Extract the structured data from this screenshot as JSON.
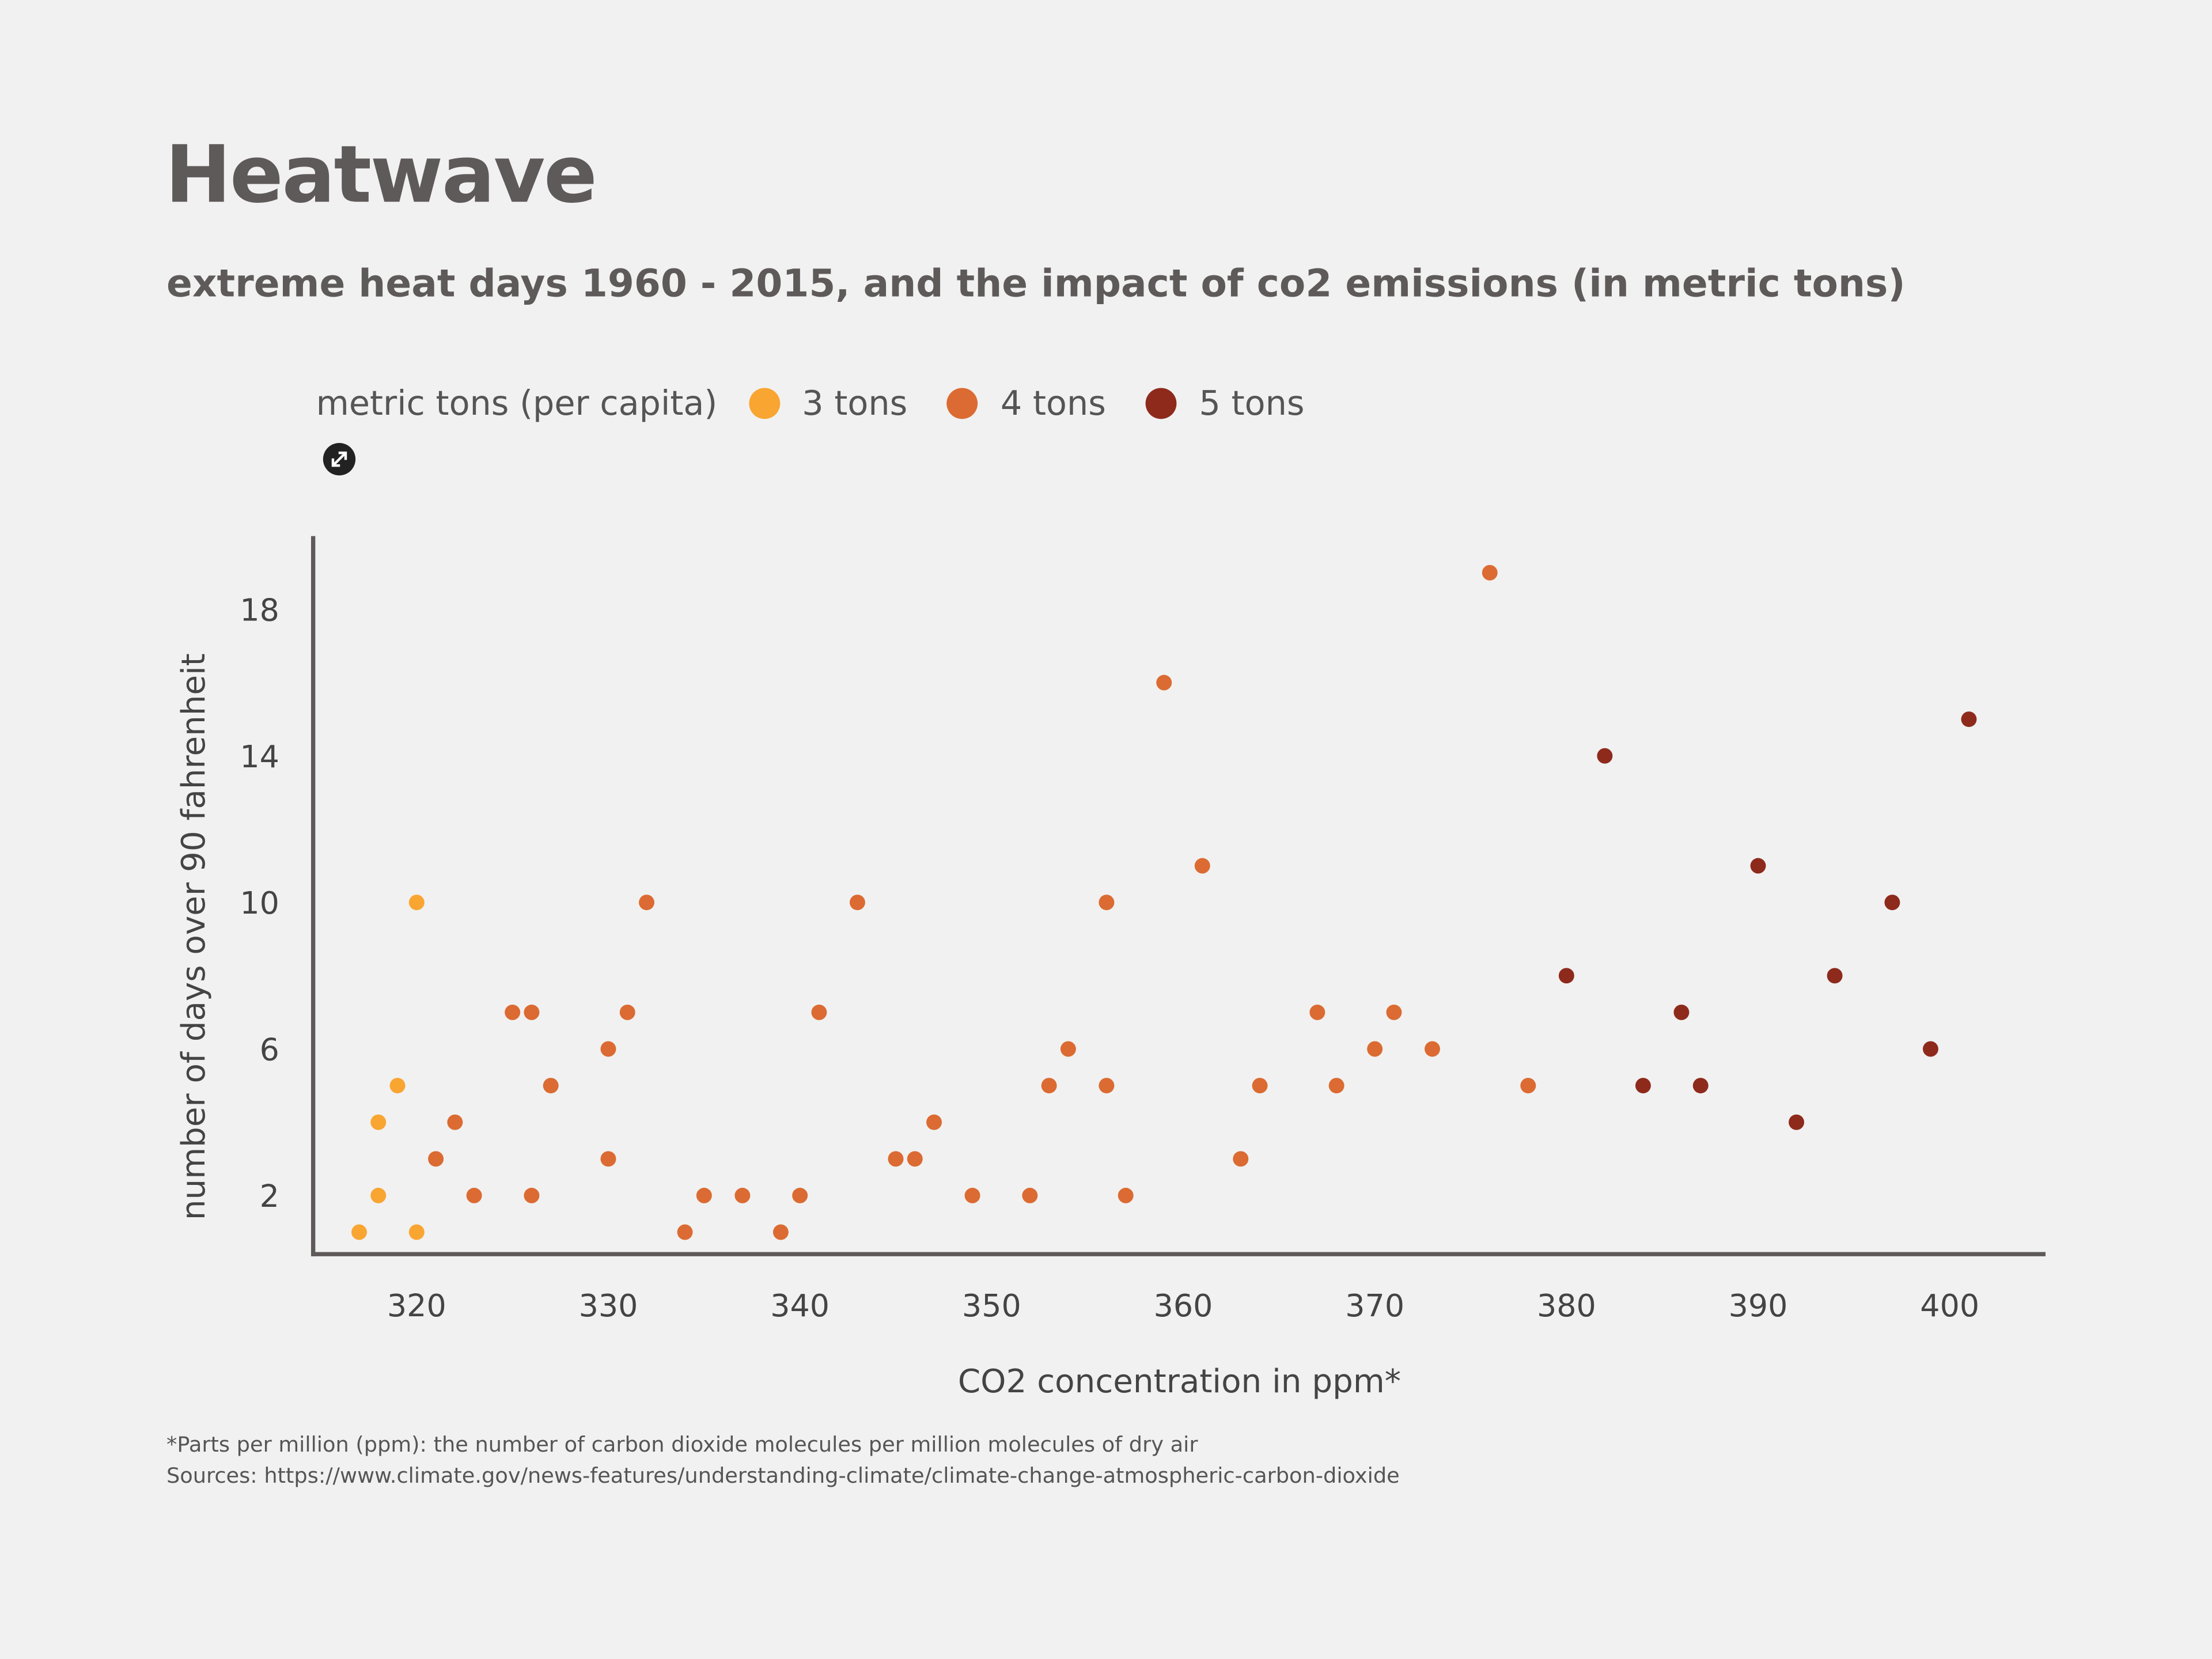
{
  "title": "Heatwave",
  "subtitle": "extreme heat days 1960 - 2015, and the impact of co2 emissions (in metric tons)",
  "legend": {
    "title": "metric tons (per capita)",
    "items": [
      {
        "label": "3 tons",
        "color": "#F9A532"
      },
      {
        "label": "4 tons",
        "color": "#DB6B32"
      },
      {
        "label": "5 tons",
        "color": "#8E2A1C"
      }
    ]
  },
  "expand_icon": "expand-arrows-icon",
  "footnotes": {
    "note": "*Parts per million (ppm): the number of carbon dioxide molecules per million molecules of dry air",
    "sources": "Sources: https://www.climate.gov/news-features/understanding-climate/climate-change-atmospheric-carbon-dioxide"
  },
  "chart_data": {
    "type": "scatter",
    "xlabel": "CO2 concentration in ppm*",
    "ylabel": "number of days over 90 fahrenheit",
    "xlim": [
      314.6,
      405
    ],
    "ylim": [
      0.4,
      20
    ],
    "xticks": [
      320,
      330,
      340,
      350,
      360,
      370,
      380,
      390,
      400
    ],
    "yticks": [
      2,
      6,
      10,
      14,
      18
    ],
    "grid": false,
    "legend_position": "top-left",
    "series": [
      {
        "name": "3 tons",
        "color": "#F9A532",
        "points": [
          [
            317,
            1
          ],
          [
            318,
            4
          ],
          [
            318,
            2
          ],
          [
            319,
            5
          ],
          [
            320,
            10
          ],
          [
            320,
            1
          ]
        ]
      },
      {
        "name": "4 tons",
        "color": "#DB6B32",
        "points": [
          [
            321,
            3
          ],
          [
            322,
            4
          ],
          [
            323,
            2
          ],
          [
            325,
            7
          ],
          [
            326,
            7
          ],
          [
            326,
            2
          ],
          [
            327,
            5
          ],
          [
            330,
            6
          ],
          [
            330,
            3
          ],
          [
            331,
            7
          ],
          [
            332,
            10
          ],
          [
            334,
            1
          ],
          [
            335,
            2
          ],
          [
            337,
            2
          ],
          [
            339,
            1
          ],
          [
            340,
            2
          ],
          [
            341,
            7
          ],
          [
            343,
            10
          ],
          [
            345,
            3
          ],
          [
            346,
            3
          ],
          [
            347,
            4
          ],
          [
            349,
            2
          ],
          [
            352,
            2
          ],
          [
            353,
            5
          ],
          [
            354,
            6
          ],
          [
            356,
            10
          ],
          [
            356,
            5
          ],
          [
            357,
            2
          ],
          [
            359,
            16
          ],
          [
            361,
            11
          ],
          [
            363,
            3
          ],
          [
            364,
            5
          ],
          [
            367,
            7
          ],
          [
            368,
            5
          ],
          [
            370,
            6
          ],
          [
            371,
            7
          ],
          [
            373,
            6
          ],
          [
            376,
            19
          ],
          [
            378,
            5
          ]
        ]
      },
      {
        "name": "5 tons",
        "color": "#8E2A1C",
        "points": [
          [
            380,
            8
          ],
          [
            382,
            14
          ],
          [
            384,
            5
          ],
          [
            386,
            7
          ],
          [
            387,
            5
          ],
          [
            390,
            11
          ],
          [
            392,
            4
          ],
          [
            394,
            8
          ],
          [
            397,
            10
          ],
          [
            399,
            6
          ],
          [
            401,
            15
          ]
        ]
      }
    ]
  }
}
